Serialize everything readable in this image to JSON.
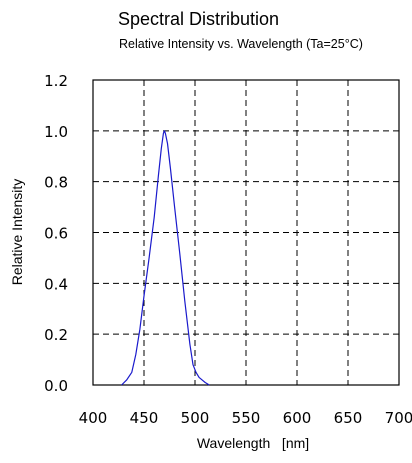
{
  "chart_data": {
    "type": "line",
    "title": "Spectral Distribution",
    "subtitle": "Relative Intensity vs. Wavelength (Ta=25°C)",
    "xlabel": "Wavelength   [nm]",
    "ylabel": "Relative Intensity",
    "xlim": [
      400,
      700
    ],
    "ylim": [
      0.0,
      1.2
    ],
    "x_ticks": [
      400,
      450,
      500,
      550,
      600,
      650,
      700
    ],
    "x_tick_labels": [
      "400",
      "450",
      "500",
      "550",
      "600",
      "650",
      "700"
    ],
    "y_ticks": [
      0.0,
      0.2,
      0.4,
      0.6,
      0.8,
      1.0,
      1.2
    ],
    "y_tick_labels": [
      "0.0",
      "0.2",
      "0.4",
      "0.6",
      "0.8",
      "1.0",
      "1.2"
    ],
    "grid": true,
    "series": [
      {
        "color": "#1a1acc",
        "x": [
          428,
          433,
          438,
          442,
          446,
          450,
          455,
          460,
          464,
          467,
          469,
          470,
          471,
          473,
          476,
          480,
          485,
          490,
          495,
          498,
          501,
          504,
          507,
          510,
          514
        ],
        "y": [
          0.0,
          0.02,
          0.05,
          0.12,
          0.22,
          0.35,
          0.5,
          0.66,
          0.82,
          0.93,
          0.99,
          1.0,
          0.99,
          0.95,
          0.85,
          0.7,
          0.52,
          0.33,
          0.16,
          0.08,
          0.05,
          0.03,
          0.02,
          0.01,
          0.0
        ]
      }
    ]
  }
}
